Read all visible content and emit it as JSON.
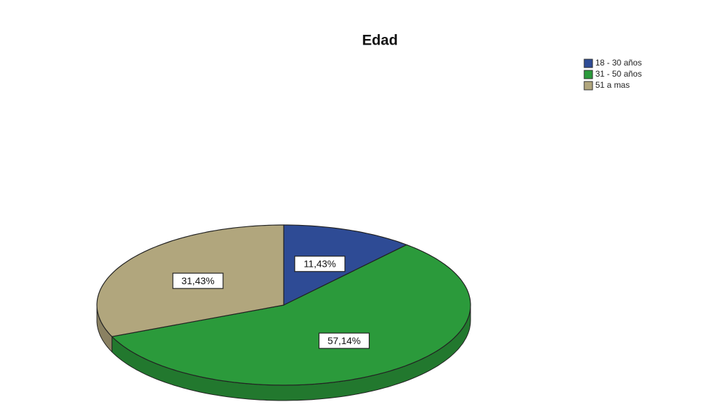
{
  "chart_data": {
    "type": "pie",
    "title": "Edad",
    "categories": [
      "18 - 30 años",
      "31 - 50 años",
      "51 a mas"
    ],
    "values": [
      11.43,
      57.14,
      31.43
    ],
    "value_labels": [
      "11,43%",
      "57,14%",
      "31,43%"
    ],
    "colors": [
      "#2e4b95",
      "#2b9a3b",
      "#b1a67d"
    ],
    "legend": "top-right"
  }
}
